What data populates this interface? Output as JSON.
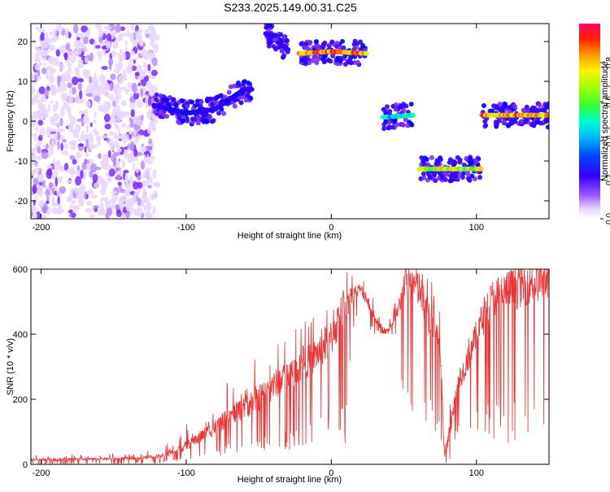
{
  "figure_title": "S233.2025.149.00.31.C25",
  "colors": {
    "snr_line": "#ee3333",
    "colormap": [
      "#ffffff",
      "#e8d6ff",
      "#b98cff",
      "#7b2cff",
      "#3300ff",
      "#0000ff",
      "#0066ff",
      "#00ccff",
      "#00ffb0",
      "#33ff33",
      "#ccff00",
      "#ffcc00",
      "#ff6600",
      "#ff0000",
      "#ff0066"
    ]
  },
  "chart_data": [
    {
      "type": "heatmap",
      "title": "S233.2025.149.00.31.C25",
      "xlabel": "Height of straight line (km)",
      "ylabel": "Frequency (Hz)",
      "xlim": [
        -207,
        150
      ],
      "ylim": [
        -24.5,
        24.5
      ],
      "x_ticks": [
        -200,
        -100,
        0,
        100
      ],
      "x_tick_labels": [
        "-200",
        "-100",
        "0",
        "100"
      ],
      "y_ticks": [
        -20,
        -10,
        0,
        10,
        20
      ],
      "y_tick_labels": [
        "-20",
        "-10",
        "0",
        "10",
        "20"
      ],
      "colorbar": {
        "label": "Normalized spectral amplitude",
        "range": [
          0,
          1
        ],
        "ticks": [
          0.0,
          0.2,
          0.4,
          0.6,
          0.8
        ],
        "tick_labels": [
          "0.0",
          "0.2",
          "0.4",
          "0.6",
          "0.8"
        ]
      },
      "features": [
        {
          "x_range": [
            -207,
            -120
          ],
          "freq_range": [
            -24,
            24
          ],
          "amplitude": 0.15,
          "kind": "diffuse noise"
        },
        {
          "x_range": [
            -122,
            -55
          ],
          "freq_trend": [
            [
              -122,
              4
            ],
            [
              -100,
              2
            ],
            [
              -80,
              3
            ],
            [
              -60,
              8
            ]
          ],
          "amplitude": 0.35,
          "kind": "track"
        },
        {
          "x_range": [
            -45,
            -30
          ],
          "freq_trend": [
            [
              -45,
              22
            ],
            [
              -30,
              18
            ]
          ],
          "amplitude": 0.3,
          "kind": "track"
        },
        {
          "x_range": [
            -22,
            24
          ],
          "freq_trend": [
            [
              -22,
              17
            ],
            [
              0,
              17.5
            ],
            [
              24,
              17
            ]
          ],
          "amplitude": 0.95,
          "kind": "track"
        },
        {
          "x_range": [
            36,
            56
          ],
          "freq_trend": [
            [
              36,
              1
            ],
            [
              56,
              1.5
            ]
          ],
          "amplitude": 0.6,
          "kind": "track"
        },
        {
          "x_range": [
            61,
            103
          ],
          "freq_trend": [
            [
              61,
              -12
            ],
            [
              103,
              -12
            ]
          ],
          "amplitude": 0.8,
          "kind": "track"
        },
        {
          "x_range": [
            104,
            150
          ],
          "freq_trend": [
            [
              104,
              1.5
            ],
            [
              150,
              1.5
            ]
          ],
          "amplitude": 0.9,
          "kind": "track"
        }
      ]
    },
    {
      "type": "line",
      "xlabel": "Height of straight line (km)",
      "ylabel": "SNR (10 * v/v)",
      "xlim": [
        -207,
        150
      ],
      "ylim": [
        0,
        600
      ],
      "x_ticks": [
        -200,
        -100,
        0,
        100
      ],
      "x_tick_labels": [
        "-200",
        "-100",
        "0",
        "100"
      ],
      "y_ticks": [
        0,
        200,
        400,
        600
      ],
      "y_tick_labels": [
        "0",
        "200",
        "400",
        "600"
      ],
      "series": [
        {
          "x": [
            -207,
            -190,
            -170,
            -150,
            -130,
            -115,
            -105,
            -95,
            -85,
            -75,
            -65,
            -55,
            -45,
            -35,
            -25,
            -15,
            -5,
            0,
            5,
            10,
            14,
            20,
            25,
            30,
            35,
            40,
            45,
            50,
            55,
            60,
            65,
            70,
            75,
            78,
            82,
            88,
            95,
            100,
            105,
            110,
            115,
            120,
            125,
            130,
            135,
            140,
            145,
            150
          ],
          "values": [
            15,
            15,
            16,
            17,
            20,
            28,
            45,
            70,
            100,
            130,
            160,
            190,
            220,
            260,
            290,
            320,
            360,
            390,
            440,
            500,
            520,
            540,
            500,
            450,
            420,
            410,
            450,
            560,
            560,
            540,
            480,
            430,
            380,
            5,
            120,
            260,
            330,
            400,
            450,
            500,
            520,
            530,
            540,
            550,
            560,
            565,
            570,
            575
          ],
          "lows": [
            0,
            0,
            0,
            0,
            0,
            5,
            10,
            15,
            20,
            25,
            30,
            30,
            35,
            40,
            45,
            50,
            55,
            60,
            60,
            55,
            400,
            450,
            420,
            400,
            400,
            400,
            380,
            100,
            100,
            100,
            100,
            100,
            10,
            0,
            10,
            100,
            100,
            100,
            100,
            80,
            70,
            60,
            50,
            40,
            40,
            40,
            40,
            40
          ],
          "highs": [
            30,
            30,
            30,
            35,
            40,
            55,
            110,
            150,
            200,
            240,
            300,
            350,
            380,
            400,
            420,
            450,
            480,
            520,
            550,
            600,
            600,
            600,
            560,
            500,
            470,
            460,
            520,
            600,
            600,
            600,
            580,
            560,
            500,
            60,
            220,
            380,
            420,
            470,
            520,
            560,
            580,
            590,
            600,
            600,
            600,
            600,
            600,
            600
          ]
        }
      ]
    }
  ]
}
